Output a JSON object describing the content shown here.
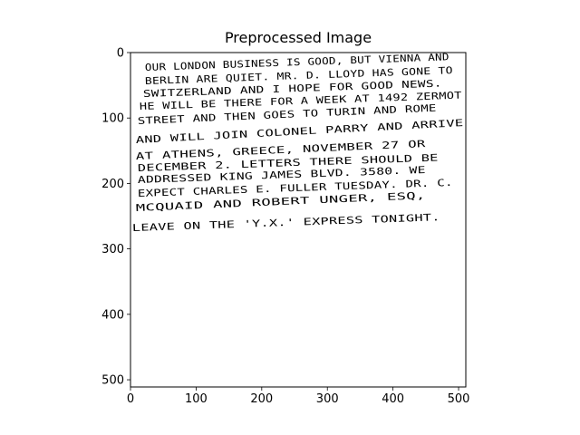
{
  "title": "Preprocessed Image",
  "axes": {
    "x_ticks": [
      "0",
      "100",
      "200",
      "300",
      "400",
      "500"
    ],
    "y_ticks": [
      "0",
      "100",
      "200",
      "300",
      "400",
      "500"
    ],
    "xlim": [
      0,
      511
    ],
    "ylim": [
      511,
      0
    ]
  },
  "handwritten_lines": [
    "OUR LONDON BUSINESS IS GOOD, BUT VIENNA AND",
    "BERLIN ARE QUIET. MR. D. LLOYD HAS GONE TO",
    "SWITZERLAND AND I HOPE FOR GOOD NEWS.",
    "HE WILL BE THERE FOR A WEEK AT 1492 ZERMOT",
    "STREET AND THEN GOES TO TURIN AND ROME",
    "AND WILL JOIN COLONEL PARRY AND ARRIVE",
    "AT ATHENS, GREECE, NOVEMBER 27 OR",
    "DECEMBER 2. LETTERS THERE SHOULD BE",
    "ADDRESSED KING JAMES BLVD. 3580. WE",
    "EXPECT CHARLES E. FULLER TUESDAY. DR. C.",
    "MCQUAID AND ROBERT UNGER, ESQ,",
    "LEAVE ON THE 'Y.X.' EXPRESS TONIGHT."
  ]
}
